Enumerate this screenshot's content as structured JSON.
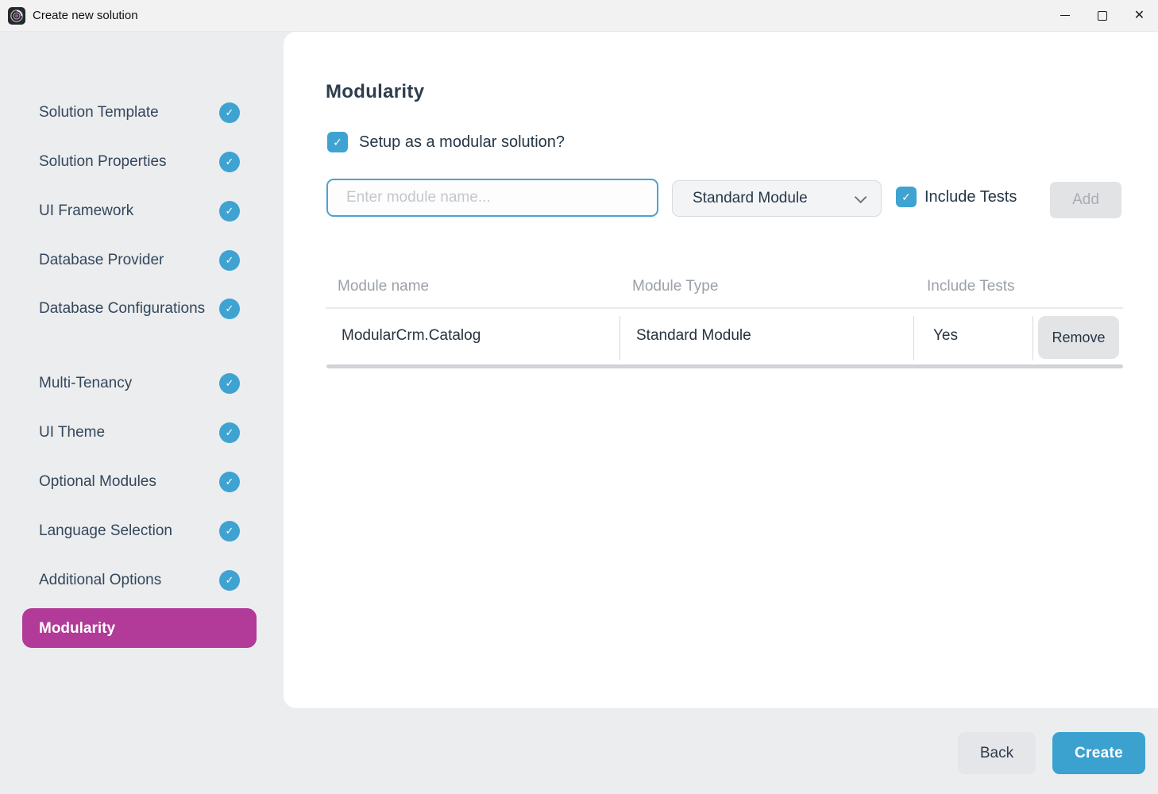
{
  "window": {
    "title": "Create new solution",
    "controls": {
      "minimize": "minimize",
      "maximize": "maximize",
      "close": "close"
    }
  },
  "colors": {
    "accent_blue": "#3fa3d2",
    "active_magenta": "#b23a98",
    "body_gray": "#ecedef",
    "titlebar_gray": "#f2f2f2"
  },
  "sidebar": {
    "items": [
      {
        "label": "Solution Template",
        "completed": true,
        "active": false
      },
      {
        "label": "Solution Properties",
        "completed": true,
        "active": false
      },
      {
        "label": "UI Framework",
        "completed": true,
        "active": false
      },
      {
        "label": "Database Provider",
        "completed": true,
        "active": false
      },
      {
        "label": "Database Configurations",
        "completed": true,
        "active": false
      },
      {
        "label": "Multi-Tenancy",
        "completed": true,
        "active": false
      },
      {
        "label": "UI Theme",
        "completed": true,
        "active": false
      },
      {
        "label": "Optional Modules",
        "completed": true,
        "active": false
      },
      {
        "label": "Language Selection",
        "completed": true,
        "active": false
      },
      {
        "label": "Additional Options",
        "completed": true,
        "active": false
      },
      {
        "label": "Modularity",
        "completed": false,
        "active": true
      }
    ]
  },
  "main": {
    "heading": "Modularity",
    "setup_checkbox": {
      "label": "Setup as a modular solution?",
      "checked": true
    },
    "module_name_input": {
      "placeholder": "Enter module name...",
      "value": ""
    },
    "module_type_select": {
      "value": "Standard Module"
    },
    "include_tests_checkbox": {
      "label": "Include Tests",
      "checked": true
    },
    "add_button": {
      "label": "Add",
      "disabled": true
    },
    "table": {
      "headers": [
        "Module name",
        "Module Type",
        "Include Tests"
      ],
      "rows": [
        {
          "module_name": "ModularCrm.Catalog",
          "module_type": "Standard Module",
          "include_tests": "Yes",
          "action_label": "Remove"
        }
      ]
    }
  },
  "footer": {
    "back_label": "Back",
    "create_label": "Create"
  }
}
